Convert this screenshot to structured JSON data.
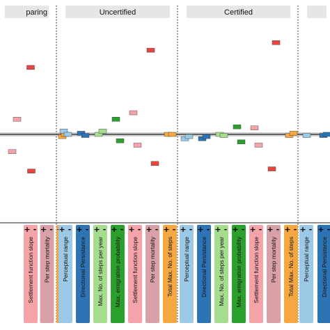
{
  "chart_data": {
    "type": "scatter",
    "panels": [
      {
        "title": "paring",
        "categories": [
          "Settlement function slope",
          "Per step mortality",
          "Total Max. No. of steps"
        ],
        "signs": [
          [
            "+",
            "-"
          ],
          [
            "+",
            "-"
          ],
          [
            "+",
            "-"
          ]
        ],
        "points": [
          {
            "category_index": -2,
            "offset": -0.7,
            "y": -0.08,
            "color": "#2ca02c"
          },
          {
            "category_index": -1,
            "offset": -0.35,
            "y": -0.16,
            "color": "#f4a3a8"
          },
          {
            "category_index": -1,
            "offset": 0.35,
            "y": 0.14,
            "color": "#f4a3a8"
          },
          {
            "category_index": 0,
            "offset": -0.05,
            "y": 0.62,
            "color": "#e8473f"
          },
          {
            "category_index": 0,
            "offset": 0.05,
            "y": -0.34,
            "color": "#e8473f"
          },
          {
            "category_index": 2,
            "offset": -0.2,
            "y": -0.02,
            "color": "#f5a742"
          },
          {
            "category_index": 2,
            "offset": 0.2,
            "y": 0.0,
            "color": "#f5a742"
          }
        ]
      },
      {
        "title": "Uncertified",
        "categories": [
          "Perceptual range",
          "Directional Persistance",
          "Max. No. of steps per year",
          "Max. emigration probability",
          "Settlement function slope",
          "Per step mortality",
          "Total Max. No. of steps"
        ],
        "signs": [
          [
            "+",
            "-"
          ],
          [
            "+",
            "-"
          ],
          [
            "+",
            "-"
          ],
          [
            "+",
            "-"
          ],
          [
            "+",
            "-"
          ],
          [
            "+",
            "-"
          ],
          [
            "+",
            "-"
          ]
        ],
        "points": [
          {
            "category_index": 0,
            "offset": -0.3,
            "y": 0.03,
            "color": "#9cc9e6"
          },
          {
            "category_index": 0,
            "offset": 0.3,
            "y": 0.0,
            "color": "#9cc9e6"
          },
          {
            "category_index": 1,
            "offset": -0.3,
            "y": 0.01,
            "color": "#2e74b5"
          },
          {
            "category_index": 1,
            "offset": 0.3,
            "y": -0.01,
            "color": "#2e74b5"
          },
          {
            "category_index": 2,
            "offset": -0.3,
            "y": 0.0,
            "color": "#a6dc8e"
          },
          {
            "category_index": 2,
            "offset": 0.3,
            "y": 0.03,
            "color": "#a6dc8e"
          },
          {
            "category_index": 3,
            "offset": -0.3,
            "y": 0.14,
            "color": "#2ca02c"
          },
          {
            "category_index": 3,
            "offset": 0.3,
            "y": -0.06,
            "color": "#2ca02c"
          },
          {
            "category_index": 4,
            "offset": -0.3,
            "y": 0.2,
            "color": "#f4a3a8"
          },
          {
            "category_index": 4,
            "offset": 0.3,
            "y": -0.1,
            "color": "#f4a3a8"
          },
          {
            "category_index": 5,
            "offset": -0.3,
            "y": 0.78,
            "color": "#e8473f"
          },
          {
            "category_index": 5,
            "offset": 0.3,
            "y": -0.27,
            "color": "#e8473f"
          },
          {
            "category_index": 6,
            "offset": -0.3,
            "y": 0.0,
            "color": "#f5a742"
          },
          {
            "category_index": 6,
            "offset": 0.3,
            "y": 0.0,
            "color": "#f5a742"
          }
        ]
      },
      {
        "title": "Certified",
        "categories": [
          "Perceptual range",
          "Directional Persistance",
          "Max. No. of steps per year",
          "Max. emigration probability",
          "Settlement function slope",
          "Per step mortality",
          "Total Max. No. of steps"
        ],
        "signs": [
          [
            "+",
            "-"
          ],
          [
            "+",
            "-"
          ],
          [
            "+",
            "-"
          ],
          [
            "+",
            "-"
          ],
          [
            "+",
            "-"
          ],
          [
            "+",
            "-"
          ],
          [
            "+",
            "-"
          ]
        ],
        "points": [
          {
            "category_index": 0,
            "offset": -0.3,
            "y": -0.04,
            "color": "#9cc9e6"
          },
          {
            "category_index": 0,
            "offset": 0.3,
            "y": -0.02,
            "color": "#9cc9e6"
          },
          {
            "category_index": 1,
            "offset": -0.3,
            "y": -0.04,
            "color": "#2e74b5"
          },
          {
            "category_index": 1,
            "offset": 0.3,
            "y": -0.02,
            "color": "#2e74b5"
          },
          {
            "category_index": 2,
            "offset": -0.3,
            "y": 0.0,
            "color": "#a6dc8e"
          },
          {
            "category_index": 2,
            "offset": 0.3,
            "y": -0.01,
            "color": "#a6dc8e"
          },
          {
            "category_index": 3,
            "offset": -0.3,
            "y": 0.07,
            "color": "#2ca02c"
          },
          {
            "category_index": 3,
            "offset": 0.3,
            "y": -0.07,
            "color": "#2ca02c"
          },
          {
            "category_index": 4,
            "offset": -0.3,
            "y": 0.06,
            "color": "#f4a3a8"
          },
          {
            "category_index": 4,
            "offset": 0.3,
            "y": -0.1,
            "color": "#f4a3a8"
          },
          {
            "category_index": 5,
            "offset": -0.3,
            "y": -0.32,
            "color": "#e8473f"
          },
          {
            "category_index": 5,
            "offset": 0.3,
            "y": 0.85,
            "color": "#e8473f"
          },
          {
            "category_index": 6,
            "offset": -0.3,
            "y": -0.01,
            "color": "#f5a742"
          },
          {
            "category_index": 6,
            "offset": 0.3,
            "y": 0.01,
            "color": "#f5a742"
          }
        ]
      },
      {
        "title": "",
        "categories": [
          "Perceptual range",
          "Directional Persistance"
        ],
        "signs": [
          [
            "+",
            "-"
          ],
          [
            "+",
            "-"
          ]
        ],
        "points": [
          {
            "category_index": 0,
            "offset": 0.0,
            "y": -0.01,
            "color": "#9cc9e6"
          },
          {
            "category_index": 1,
            "offset": -0.2,
            "y": -0.01,
            "color": "#2e74b5"
          },
          {
            "category_index": 1,
            "offset": 0.3,
            "y": 0.0,
            "color": "#2e74b5"
          }
        ]
      }
    ],
    "category_colors": {
      "Perceptual range": "#9cc9e6",
      "Directional Persistance": "#2e74b5",
      "Max. No. of steps per year": "#a6dc8e",
      "Max. emigration probability": "#2ca02c",
      "Settlement function slope": "#f4a3a8",
      "Per step mortality": "#d9a0a8",
      "Total Max. No. of steps": "#f5a742"
    },
    "reference_line_y": 0,
    "ylim": [
      -1,
      1
    ],
    "grid": false
  }
}
